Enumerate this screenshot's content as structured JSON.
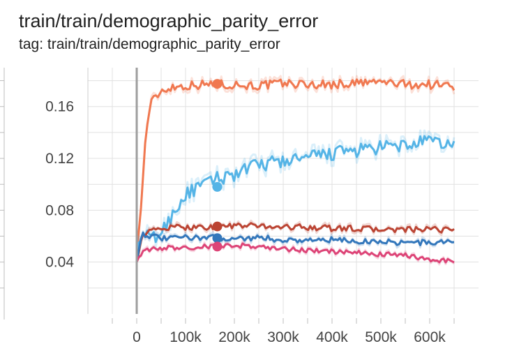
{
  "header": {
    "title": "train/train/demographic_parity_error",
    "tag": "tag: train/train/demographic_parity_error"
  },
  "chart_data": {
    "type": "line",
    "title": "train/train/demographic_parity_error",
    "xlabel": "",
    "ylabel": "",
    "xlim": [
      -100000,
      700000
    ],
    "ylim": [
      0,
      0.19
    ],
    "x_ticks": [
      0,
      100000,
      200000,
      300000,
      400000,
      500000,
      600000
    ],
    "x_tick_labels": [
      "0",
      "100k",
      "200k",
      "300k",
      "400k",
      "500k",
      "600k"
    ],
    "y_ticks": [
      0.04,
      0.08,
      0.12,
      0.16
    ],
    "y_tick_labels": [
      "0.04",
      "0.08",
      "0.12",
      "0.16"
    ],
    "grid": true,
    "legend": "none",
    "series": [
      {
        "color": "#f07850",
        "x": [
          0,
          10000,
          20000,
          30000,
          40000,
          50000,
          70000,
          100000,
          130000,
          160000,
          200000,
          250000,
          300000,
          350000,
          400000,
          450000,
          500000,
          550000,
          600000,
          650000
        ],
        "y": [
          0.04,
          0.09,
          0.145,
          0.163,
          0.168,
          0.172,
          0.175,
          0.176,
          0.177,
          0.177,
          0.177,
          0.176,
          0.178,
          0.177,
          0.177,
          0.178,
          0.179,
          0.177,
          0.177,
          0.176
        ],
        "marker": {
          "x": 165000,
          "y": 0.1775
        }
      },
      {
        "color": "#55b4e6",
        "x": [
          0,
          10000,
          30000,
          50000,
          70000,
          100000,
          130000,
          160000,
          200000,
          250000,
          300000,
          350000,
          400000,
          450000,
          500000,
          550000,
          600000,
          650000
        ],
        "y": [
          0.04,
          0.062,
          0.058,
          0.062,
          0.075,
          0.092,
          0.098,
          0.104,
          0.108,
          0.115,
          0.118,
          0.12,
          0.124,
          0.126,
          0.128,
          0.13,
          0.133,
          0.13
        ],
        "marker": {
          "x": 165000,
          "y": 0.098
        }
      },
      {
        "color": "#bb4433",
        "x": [
          0,
          10000,
          30000,
          50000,
          100000,
          150000,
          200000,
          250000,
          300000,
          350000,
          400000,
          450000,
          500000,
          550000,
          600000,
          650000
        ],
        "y": [
          0.04,
          0.06,
          0.064,
          0.066,
          0.067,
          0.067,
          0.068,
          0.068,
          0.067,
          0.067,
          0.066,
          0.066,
          0.065,
          0.065,
          0.065,
          0.065
        ],
        "marker": {
          "x": 165000,
          "y": 0.0675
        }
      },
      {
        "color": "#3377bb",
        "x": [
          0,
          10000,
          30000,
          50000,
          100000,
          150000,
          200000,
          250000,
          300000,
          350000,
          400000,
          450000,
          500000,
          550000,
          600000,
          650000
        ],
        "y": [
          0.04,
          0.062,
          0.06,
          0.058,
          0.059,
          0.059,
          0.058,
          0.059,
          0.057,
          0.057,
          0.057,
          0.056,
          0.056,
          0.055,
          0.055,
          0.056
        ],
        "marker": {
          "x": 165000,
          "y": 0.0585
        }
      },
      {
        "color": "#dd4477",
        "x": [
          0,
          10000,
          30000,
          50000,
          100000,
          150000,
          200000,
          250000,
          300000,
          350000,
          400000,
          450000,
          500000,
          550000,
          600000,
          650000
        ],
        "y": [
          0.04,
          0.047,
          0.05,
          0.051,
          0.051,
          0.052,
          0.053,
          0.052,
          0.05,
          0.049,
          0.048,
          0.047,
          0.046,
          0.045,
          0.042,
          0.041
        ],
        "marker": {
          "x": 165000,
          "y": 0.052
        }
      }
    ]
  }
}
